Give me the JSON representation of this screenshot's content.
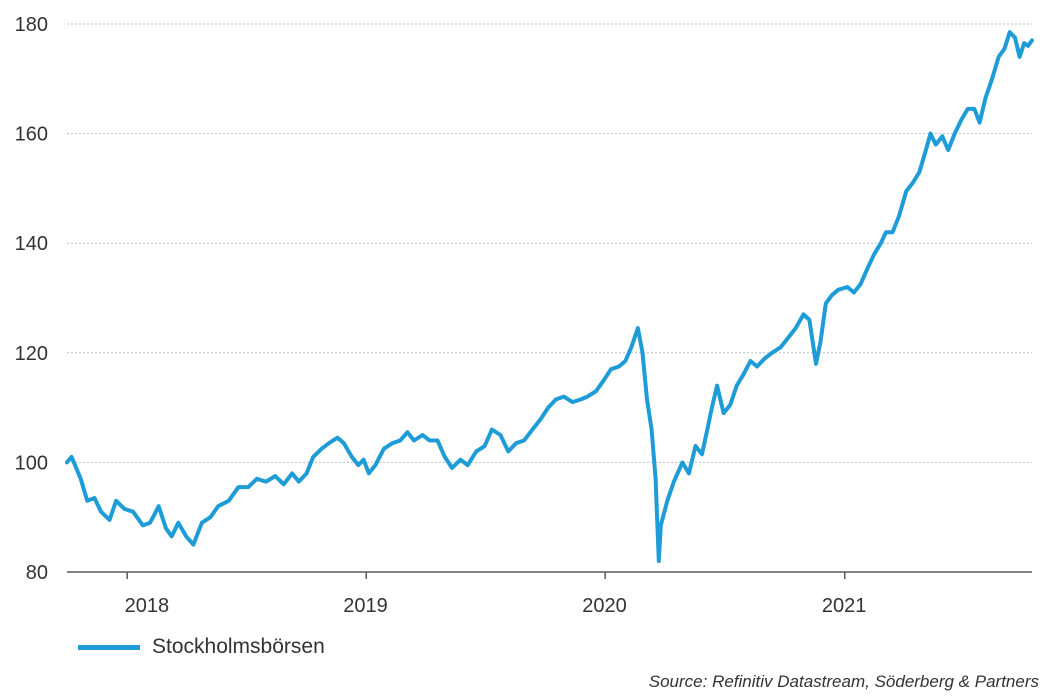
{
  "colors": {
    "series": "#1e9cd7",
    "axis": "#595959",
    "grid": "#bfbfbf",
    "text": "#333333"
  },
  "chart_data": {
    "type": "line",
    "ylim": [
      80,
      180
    ],
    "yticks": [
      80,
      100,
      120,
      140,
      160,
      180
    ],
    "xlim": [
      "2017-10-01",
      "2021-10-14"
    ],
    "xtick_dates": [
      "2018-01-01",
      "2019-01-01",
      "2020-01-01",
      "2021-01-01"
    ],
    "xtick_labels": [
      {
        "label": "2018",
        "date": "2018-01-31"
      },
      {
        "label": "2019",
        "date": "2018-12-31"
      },
      {
        "label": "2020",
        "date": "2019-12-31"
      },
      {
        "label": "2021",
        "date": "2020-12-31"
      }
    ],
    "grid": "horizontal dotted",
    "legend_position": "bottom-left",
    "series": [
      {
        "name": "Stockholmsbörsen",
        "color": "#1e9cd7",
        "points": [
          [
            "2017-10-01",
            100.0
          ],
          [
            "2017-10-08",
            101.0
          ],
          [
            "2017-10-22",
            97.0
          ],
          [
            "2017-11-01",
            93.0
          ],
          [
            "2017-11-12",
            93.5
          ],
          [
            "2017-11-22",
            91.0
          ],
          [
            "2017-12-05",
            89.5
          ],
          [
            "2017-12-15",
            93.0
          ],
          [
            "2017-12-28",
            91.5
          ],
          [
            "2018-01-10",
            91.0
          ],
          [
            "2018-01-25",
            88.5
          ],
          [
            "2018-02-05",
            89.0
          ],
          [
            "2018-02-18",
            92.0
          ],
          [
            "2018-03-01",
            88.0
          ],
          [
            "2018-03-10",
            86.5
          ],
          [
            "2018-03-20",
            89.0
          ],
          [
            "2018-04-01",
            86.5
          ],
          [
            "2018-04-12",
            85.0
          ],
          [
            "2018-04-25",
            89.0
          ],
          [
            "2018-05-08",
            90.0
          ],
          [
            "2018-05-20",
            92.0
          ],
          [
            "2018-06-05",
            93.0
          ],
          [
            "2018-06-20",
            95.5
          ],
          [
            "2018-07-05",
            95.5
          ],
          [
            "2018-07-18",
            97.0
          ],
          [
            "2018-08-01",
            96.5
          ],
          [
            "2018-08-15",
            97.5
          ],
          [
            "2018-08-28",
            96.0
          ],
          [
            "2018-09-10",
            98.0
          ],
          [
            "2018-09-20",
            96.5
          ],
          [
            "2018-10-02",
            98.0
          ],
          [
            "2018-10-12",
            101.0
          ],
          [
            "2018-10-25",
            102.5
          ],
          [
            "2018-11-05",
            103.5
          ],
          [
            "2018-11-18",
            104.5
          ],
          [
            "2018-11-28",
            103.5
          ],
          [
            "2018-12-10",
            101.0
          ],
          [
            "2018-12-20",
            99.5
          ],
          [
            "2018-12-28",
            100.5
          ],
          [
            "2019-01-05",
            98.0
          ],
          [
            "2019-01-15",
            99.5
          ],
          [
            "2019-01-28",
            102.5
          ],
          [
            "2019-02-10",
            103.5
          ],
          [
            "2019-02-22",
            104.0
          ],
          [
            "2019-03-05",
            105.5
          ],
          [
            "2019-03-15",
            104.0
          ],
          [
            "2019-03-28",
            105.0
          ],
          [
            "2019-04-08",
            104.0
          ],
          [
            "2019-04-20",
            104.0
          ],
          [
            "2019-05-01",
            101.0
          ],
          [
            "2019-05-12",
            99.0
          ],
          [
            "2019-05-25",
            100.5
          ],
          [
            "2019-06-05",
            99.5
          ],
          [
            "2019-06-18",
            102.0
          ],
          [
            "2019-07-01",
            103.0
          ],
          [
            "2019-07-12",
            106.0
          ],
          [
            "2019-07-25",
            105.0
          ],
          [
            "2019-08-06",
            102.0
          ],
          [
            "2019-08-18",
            103.5
          ],
          [
            "2019-08-30",
            104.0
          ],
          [
            "2019-09-12",
            106.0
          ],
          [
            "2019-09-25",
            108.0
          ],
          [
            "2019-10-06",
            110.0
          ],
          [
            "2019-10-18",
            111.5
          ],
          [
            "2019-10-30",
            112.0
          ],
          [
            "2019-11-12",
            111.0
          ],
          [
            "2019-11-25",
            111.5
          ],
          [
            "2019-12-05",
            112.0
          ],
          [
            "2019-12-18",
            113.0
          ],
          [
            "2019-12-30",
            115.0
          ],
          [
            "2020-01-10",
            117.0
          ],
          [
            "2020-01-22",
            117.5
          ],
          [
            "2020-02-01",
            118.5
          ],
          [
            "2020-02-10",
            121.0
          ],
          [
            "2020-02-20",
            124.5
          ],
          [
            "2020-02-27",
            120.0
          ],
          [
            "2020-03-05",
            111.5
          ],
          [
            "2020-03-12",
            106.0
          ],
          [
            "2020-03-18",
            97.0
          ],
          [
            "2020-03-23",
            82.0
          ],
          [
            "2020-03-26",
            88.5
          ],
          [
            "2020-04-05",
            93.0
          ],
          [
            "2020-04-15",
            96.5
          ],
          [
            "2020-04-28",
            100.0
          ],
          [
            "2020-05-08",
            98.0
          ],
          [
            "2020-05-18",
            103.0
          ],
          [
            "2020-05-28",
            101.5
          ],
          [
            "2020-06-05",
            106.0
          ],
          [
            "2020-06-12",
            110.0
          ],
          [
            "2020-06-20",
            114.0
          ],
          [
            "2020-06-30",
            109.0
          ],
          [
            "2020-07-10",
            110.5
          ],
          [
            "2020-07-20",
            114.0
          ],
          [
            "2020-07-30",
            116.0
          ],
          [
            "2020-08-10",
            118.5
          ],
          [
            "2020-08-20",
            117.5
          ],
          [
            "2020-09-01",
            119.0
          ],
          [
            "2020-09-12",
            120.0
          ],
          [
            "2020-09-25",
            121.0
          ],
          [
            "2020-10-05",
            122.5
          ],
          [
            "2020-10-18",
            124.5
          ],
          [
            "2020-10-30",
            127.0
          ],
          [
            "2020-11-08",
            126.0
          ],
          [
            "2020-11-18",
            118.0
          ],
          [
            "2020-11-25",
            122.0
          ],
          [
            "2020-12-03",
            129.0
          ],
          [
            "2020-12-12",
            130.5
          ],
          [
            "2020-12-22",
            131.5
          ],
          [
            "2021-01-05",
            132.0
          ],
          [
            "2021-01-15",
            131.0
          ],
          [
            "2021-01-25",
            132.5
          ],
          [
            "2021-02-05",
            135.5
          ],
          [
            "2021-02-15",
            138.0
          ],
          [
            "2021-02-25",
            140.0
          ],
          [
            "2021-03-05",
            142.0
          ],
          [
            "2021-03-15",
            142.0
          ],
          [
            "2021-03-25",
            145.0
          ],
          [
            "2021-04-05",
            149.5
          ],
          [
            "2021-04-15",
            151.0
          ],
          [
            "2021-04-25",
            153.0
          ],
          [
            "2021-05-05",
            157.0
          ],
          [
            "2021-05-12",
            160.0
          ],
          [
            "2021-05-20",
            158.0
          ],
          [
            "2021-05-30",
            159.5
          ],
          [
            "2021-06-08",
            157.0
          ],
          [
            "2021-06-18",
            160.0
          ],
          [
            "2021-06-28",
            162.5
          ],
          [
            "2021-07-08",
            164.5
          ],
          [
            "2021-07-18",
            164.5
          ],
          [
            "2021-07-26",
            162.0
          ],
          [
            "2021-08-04",
            166.5
          ],
          [
            "2021-08-14",
            170.0
          ],
          [
            "2021-08-24",
            174.0
          ],
          [
            "2021-09-02",
            175.5
          ],
          [
            "2021-09-10",
            178.5
          ],
          [
            "2021-09-18",
            177.5
          ],
          [
            "2021-09-25",
            174.0
          ],
          [
            "2021-10-02",
            176.5
          ],
          [
            "2021-10-08",
            176.0
          ],
          [
            "2021-10-14",
            177.0
          ]
        ]
      }
    ]
  },
  "legend": {
    "label": "Stockholmsbörsen"
  },
  "source": "Source: Refinitiv Datastream, Söderberg & Partners"
}
